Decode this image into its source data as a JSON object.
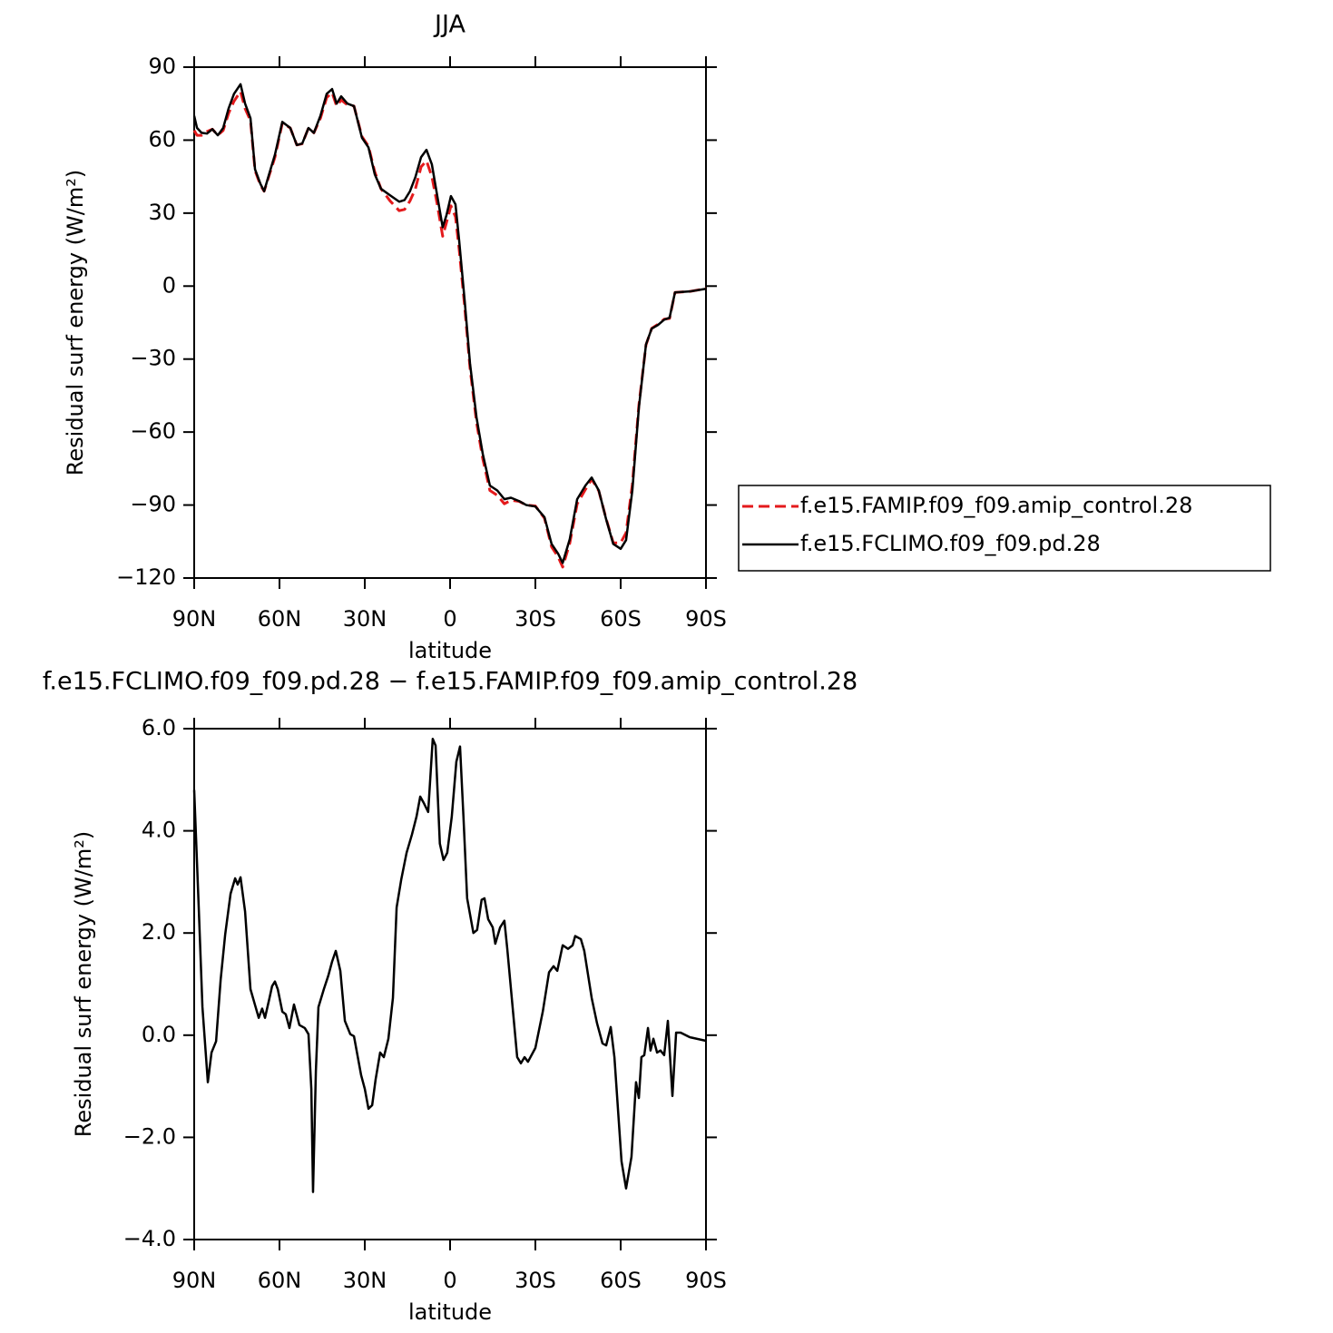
{
  "chart_data": [
    {
      "type": "line",
      "title": "JJA",
      "xlabel": "latitude",
      "ylabel": "Residual surf energy (W/m²)",
      "xlim": [
        90,
        -90
      ],
      "ylim": [
        -120,
        90
      ],
      "xticks": [
        {
          "value": 90,
          "label": "90N"
        },
        {
          "value": 60,
          "label": "60N"
        },
        {
          "value": 30,
          "label": "30N"
        },
        0,
        {
          "value": -30,
          "label": "30S"
        },
        {
          "value": -60,
          "label": "60S"
        },
        {
          "value": -90,
          "label": "90S"
        }
      ],
      "yticks": [
        {
          "value": -120,
          "label": "−120"
        },
        {
          "value": -90,
          "label": "−90"
        },
        {
          "value": -60,
          "label": "−60"
        },
        {
          "value": -30,
          "label": "−30"
        },
        0,
        30,
        60,
        90
      ],
      "legend": "right",
      "x": [
        90,
        89,
        87.4,
        85.5,
        83.6,
        81.7,
        79.8,
        77.9,
        76,
        73.7,
        72.1,
        70.2,
        68.6,
        66.7,
        65.4,
        63.5,
        61.6,
        59,
        56.2,
        53.9,
        52,
        49.8,
        47.9,
        45.6,
        43.4,
        41.5,
        39.9,
        38.3,
        36.1,
        33.8,
        31,
        28.7,
        26.5,
        24.3,
        21.1,
        17.9,
        16,
        14.1,
        12.2,
        10.2,
        8.3,
        6.4,
        4.5,
        2.6,
        1.3,
        -0.3,
        -1.9,
        -3.2,
        -5.1,
        -7,
        -9.3,
        -11.5,
        -14,
        -16.6,
        -19.1,
        -21.4,
        -24.3,
        -26.8,
        -30,
        -33.2,
        -35.7,
        -38,
        -39.6,
        -42.1,
        -44.7,
        -47.6,
        -49.8,
        -52.3,
        -54.9,
        -57.4,
        -60,
        -61.9,
        -64.1,
        -66.4,
        -68.9,
        -70.9,
        -73.1,
        -75.3,
        -77.2,
        -79.1,
        -84.3,
        -90
      ],
      "series": [
        {
          "name": "f.e15.FAMIP.f09_f09.amip_control.28",
          "color": "#e41a1c",
          "style": "dashed",
          "values": [
            64,
            62,
            62,
            63.5,
            64.5,
            62,
            64,
            71,
            76,
            80,
            73,
            68,
            47.5,
            41.5,
            39,
            46,
            53,
            67,
            65,
            58,
            58.5,
            65,
            63,
            69,
            77.5,
            79.5,
            74,
            76.5,
            74.5,
            74,
            61.5,
            57.5,
            47,
            40,
            35,
            31,
            31.5,
            35,
            40,
            49,
            51.5,
            45,
            33.5,
            20.5,
            26,
            33,
            28.5,
            15,
            -8,
            -33.5,
            -56,
            -71,
            -84,
            -86,
            -89.5,
            -88,
            -88.5,
            -90,
            -90.4,
            -95.4,
            -107.2,
            -111.3,
            -115.5,
            -105.7,
            -89.5,
            -83.6,
            -79.4,
            -84.2,
            -95.7,
            -105.6,
            -105.5,
            -101.4,
            -81.6,
            -49,
            -24.2,
            -17.4,
            -15.7,
            -13.6,
            -13.3,
            -2.6,
            -2.2,
            -1
          ]
        },
        {
          "name": "f.e15.FCLIMO.f09_f09.pd.28",
          "color": "#000000",
          "style": "solid",
          "values": [
            70,
            65,
            63,
            62.7,
            64.5,
            62,
            65,
            73,
            79,
            83,
            75,
            69,
            48,
            42,
            39,
            46.6,
            54,
            67.5,
            65,
            58,
            58.6,
            65,
            63,
            70,
            79,
            81,
            75,
            78,
            75,
            74,
            61,
            57,
            46,
            40,
            37.3,
            34.7,
            35.4,
            39,
            44.8,
            53,
            56,
            50,
            37,
            24.2,
            29,
            37,
            33.6,
            18.6,
            -5.6,
            -31.7,
            -54,
            -69,
            -82,
            -84,
            -87.6,
            -87,
            -88.4,
            -90,
            -90.6,
            -95,
            -106,
            -110,
            -113.8,
            -104,
            -87.6,
            -82,
            -78.7,
            -84,
            -95.9,
            -106,
            -108,
            -104.4,
            -84,
            -50,
            -24,
            -17.5,
            -16,
            -13.8,
            -13,
            -2.6,
            -2.2,
            -1.1
          ]
        }
      ]
    },
    {
      "type": "line",
      "title": "f.e15.FCLIMO.f09_f09.pd.28 − f.e15.FAMIP.f09_f09.amip_control.28",
      "xlabel": "latitude",
      "ylabel": "Residual surf energy (W/m²)",
      "xlim": [
        90,
        -90
      ],
      "ylim": [
        -4,
        6
      ],
      "xticks": [
        {
          "value": 90,
          "label": "90N"
        },
        {
          "value": 60,
          "label": "60N"
        },
        {
          "value": 30,
          "label": "30N"
        },
        0,
        {
          "value": -30,
          "label": "30S"
        },
        {
          "value": -60,
          "label": "60S"
        },
        {
          "value": -90,
          "label": "90S"
        }
      ],
      "yticks": [
        {
          "value": -4,
          "label": "−4.0"
        },
        {
          "value": -2,
          "label": "−2.0"
        },
        {
          "value": 0,
          "label": "0.0"
        },
        {
          "value": 2,
          "label": "2.0"
        },
        {
          "value": 4,
          "label": "4.0"
        },
        {
          "value": 6,
          "label": "6.0"
        }
      ],
      "x": [
        90,
        88.4,
        87.1,
        85.2,
        83.9,
        82.3,
        80.7,
        79.1,
        77.2,
        75.6,
        74.7,
        73.7,
        72.1,
        70.2,
        68.6,
        67.3,
        66.1,
        65.1,
        63.5,
        62.6,
        61.6,
        60.6,
        59,
        57.8,
        56.5,
        54.9,
        53,
        51.1,
        49.8,
        48.8,
        48.2,
        47.2,
        46.3,
        44.4,
        42.8,
        41.5,
        40.2,
        38.6,
        37,
        35.1,
        33.8,
        31.3,
        30,
        28.7,
        27.4,
        26.2,
        24.6,
        23.3,
        21.7,
        20.1,
        18.8,
        17.2,
        15.3,
        13.4,
        11.8,
        10.5,
        9.3,
        7.7,
        6.1,
        5.1,
        3.6,
        2.3,
        1.0,
        -0.6,
        -2.2,
        -3.5,
        -4.7,
        -6,
        -8.2,
        -9.5,
        -11.1,
        -12.1,
        -13.4,
        -15,
        -15.9,
        -17.6,
        -19.1,
        -20.1,
        -21.7,
        -23.6,
        -24.9,
        -26.2,
        -27.4,
        -30,
        -32.6,
        -34.8,
        -36.4,
        -37.7,
        -39.6,
        -41.5,
        -43.1,
        -44,
        -46,
        -47.2,
        -49.8,
        -51.7,
        -53.6,
        -54.9,
        -56.5,
        -57.8,
        -60.3,
        -61.9,
        -63.8,
        -65.4,
        -66.4,
        -67.3,
        -68.3,
        -69.6,
        -70.5,
        -71.5,
        -72.8,
        -74,
        -75.3,
        -76.6,
        -78.2,
        -79.5,
        -81.1,
        -84.3,
        -90
      ],
      "series": [
        {
          "name": "f.e15.FCLIMO.f09_f09.pd.28 − f.e15.FAMIP.f09_f09.amip_control.28",
          "color": "#000000",
          "style": "solid",
          "values": [
            4.8,
            2.5,
            0.55,
            -0.92,
            -0.34,
            -0.12,
            1.08,
            1.97,
            2.77,
            3.07,
            2.95,
            3.09,
            2.42,
            0.9,
            0.59,
            0.34,
            0.52,
            0.34,
            0.73,
            0.96,
            1.05,
            0.9,
            0.46,
            0.41,
            0.14,
            0.6,
            0.2,
            0.14,
            0.02,
            -1.05,
            -3.07,
            -0.7,
            0.55,
            0.9,
            1.17,
            1.44,
            1.65,
            1.26,
            0.28,
            0.02,
            -0.02,
            -0.78,
            -1.05,
            -1.44,
            -1.37,
            -0.87,
            -0.34,
            -0.43,
            -0.07,
            0.73,
            2.5,
            3.04,
            3.57,
            3.93,
            4.28,
            4.67,
            4.55,
            4.37,
            5.8,
            5.67,
            3.75,
            3.43,
            3.57,
            4.28,
            5.35,
            5.65,
            4.28,
            2.68,
            2.0,
            2.06,
            2.65,
            2.68,
            2.27,
            2.11,
            1.79,
            2.11,
            2.24,
            1.7,
            0.73,
            -0.43,
            -0.55,
            -0.43,
            -0.52,
            -0.25,
            0.46,
            1.23,
            1.35,
            1.26,
            1.76,
            1.69,
            1.76,
            1.94,
            1.88,
            1.65,
            0.73,
            0.23,
            -0.16,
            -0.2,
            0.16,
            -0.43,
            -2.47,
            -3.0,
            -2.38,
            -0.92,
            -1.23,
            -0.43,
            -0.39,
            0.14,
            -0.3,
            -0.07,
            -0.34,
            -0.3,
            -0.39,
            0.28,
            -1.19,
            0.05,
            0.05,
            -0.04,
            -0.11
          ]
        }
      ]
    }
  ]
}
